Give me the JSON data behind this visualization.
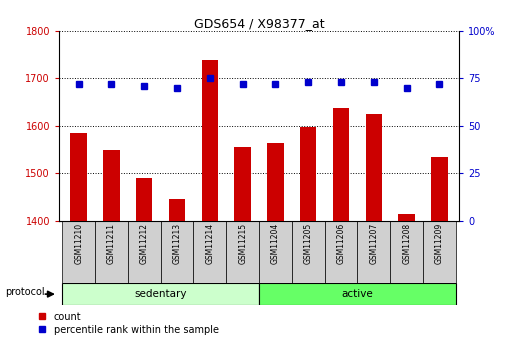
{
  "title": "GDS654 / X98377_at",
  "samples": [
    "GSM11210",
    "GSM11211",
    "GSM11212",
    "GSM11213",
    "GSM11214",
    "GSM11215",
    "GSM11204",
    "GSM11205",
    "GSM11206",
    "GSM11207",
    "GSM11208",
    "GSM11209"
  ],
  "count_values": [
    1585,
    1550,
    1490,
    1445,
    1740,
    1555,
    1565,
    1598,
    1638,
    1625,
    1415,
    1535
  ],
  "percentile_values": [
    72,
    72,
    71,
    70,
    75,
    72,
    72,
    73,
    73,
    73,
    70,
    72
  ],
  "ylim_left": [
    1400,
    1800
  ],
  "ylim_right": [
    0,
    100
  ],
  "yticks_left": [
    1400,
    1500,
    1600,
    1700,
    1800
  ],
  "yticks_right": [
    0,
    25,
    50,
    75,
    100
  ],
  "yticklabels_right": [
    "0",
    "25",
    "50",
    "75",
    "100%"
  ],
  "bar_color": "#cc0000",
  "dot_color": "#0000cc",
  "grid_color": "#000000",
  "n_sedentary": 6,
  "n_active": 6,
  "sedentary_label": "sedentary",
  "active_label": "active",
  "protocol_label": "protocol",
  "legend_count": "count",
  "legend_percentile": "percentile rank within the sample",
  "sedentary_color": "#ccffcc",
  "active_color": "#66ff66",
  "tick_label_color_left": "#cc0000",
  "tick_label_color_right": "#0000cc",
  "label_bg_color": "#d0d0d0",
  "bar_width": 0.5
}
